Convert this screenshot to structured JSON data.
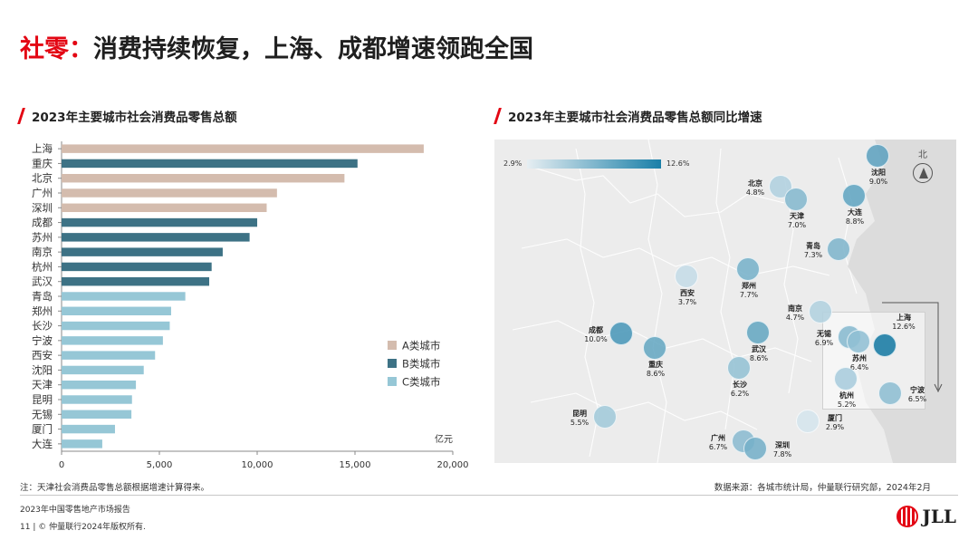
{
  "title": {
    "accent": "社零：",
    "text": "消费持续恢复，上海、成都增速领跑全国"
  },
  "left_subtitle": "2023年主要城市社会消费品零售总额",
  "right_subtitle": "2023年主要城市社会消费品零售总额同比增速",
  "colors": {
    "A": "#d4bcae",
    "B": "#3d7285",
    "C": "#96c7d6",
    "accent": "#e30613"
  },
  "chart_data": [
    {
      "type": "bar",
      "orientation": "horizontal",
      "title": "2023年主要城市社会消费品零售总额",
      "unit": "亿元",
      "xlim": [
        0,
        20000
      ],
      "xticks": [
        "0",
        "5,000",
        "10,000",
        "15,000",
        "20,000"
      ],
      "categories": [
        "上海",
        "重庆",
        "北京",
        "广州",
        "深圳",
        "成都",
        "苏州",
        "南京",
        "杭州",
        "武汉",
        "青岛",
        "郑州",
        "长沙",
        "宁波",
        "西安",
        "沈阳",
        "天津",
        "昆明",
        "无锡",
        "厦门",
        "大连"
      ],
      "values": [
        18515,
        15130,
        14462,
        11012,
        10486,
        10001,
        9612,
        8238,
        7671,
        7548,
        6326,
        5600,
        5530,
        5180,
        4780,
        4200,
        3800,
        3600,
        3570,
        2730,
        2080
      ],
      "groups": [
        "A",
        "B",
        "A",
        "A",
        "A",
        "B",
        "B",
        "B",
        "B",
        "B",
        "C",
        "C",
        "C",
        "C",
        "C",
        "C",
        "C",
        "C",
        "C",
        "C",
        "C"
      ],
      "legend": [
        {
          "key": "A",
          "label": "A类城市"
        },
        {
          "key": "B",
          "label": "B类城市"
        },
        {
          "key": "C",
          "label": "C类城市"
        }
      ],
      "legend_position": "right"
    },
    {
      "type": "scatter",
      "subtype": "bubble-map",
      "title": "2023年主要城市社会消费品零售总额同比增速",
      "color_scale": {
        "min_label": "2.9%",
        "max_label": "12.6%",
        "min": 2.9,
        "max": 12.6
      },
      "north_label": "北",
      "cities": [
        {
          "name": "北京",
          "growth": "4.8%",
          "value": 4.8
        },
        {
          "name": "天津",
          "growth": "7.0%",
          "value": 7.0
        },
        {
          "name": "沈阳",
          "growth": "9.0%",
          "value": 9.0
        },
        {
          "name": "大连",
          "growth": "8.8%",
          "value": 8.8
        },
        {
          "name": "青岛",
          "growth": "7.3%",
          "value": 7.3
        },
        {
          "name": "郑州",
          "growth": "7.7%",
          "value": 7.7
        },
        {
          "name": "西安",
          "growth": "3.7%",
          "value": 3.7
        },
        {
          "name": "南京",
          "growth": "4.7%",
          "value": 4.7
        },
        {
          "name": "成都",
          "growth": "10.0%",
          "value": 10.0
        },
        {
          "name": "重庆",
          "growth": "8.6%",
          "value": 8.6
        },
        {
          "name": "武汉",
          "growth": "8.6%",
          "value": 8.6
        },
        {
          "name": "长沙",
          "growth": "6.2%",
          "value": 6.2
        },
        {
          "name": "昆明",
          "growth": "5.5%",
          "value": 5.5
        },
        {
          "name": "广州",
          "growth": "6.7%",
          "value": 6.7
        },
        {
          "name": "深圳",
          "growth": "7.8%",
          "value": 7.8
        },
        {
          "name": "厦门",
          "growth": "2.9%",
          "value": 2.9
        },
        {
          "name": "上海",
          "growth": "12.6%",
          "value": 12.6
        },
        {
          "name": "无锡",
          "growth": "6.9%",
          "value": 6.9
        },
        {
          "name": "苏州",
          "growth": "6.4%",
          "value": 6.4
        },
        {
          "name": "杭州",
          "growth": "5.2%",
          "value": 5.2
        },
        {
          "name": "宁波",
          "growth": "6.5%",
          "value": 6.5
        }
      ]
    }
  ],
  "note": "注：天津社会消费品零售总额根据增速计算得来。",
  "source": "数据来源：各城市统计局，仲量联行研究部，2024年2月",
  "footer": {
    "report": "2023年中国零售地产市场报告",
    "copyright": "11 | © 仲量联行2024年版权所有.",
    "logo": "JLL"
  }
}
